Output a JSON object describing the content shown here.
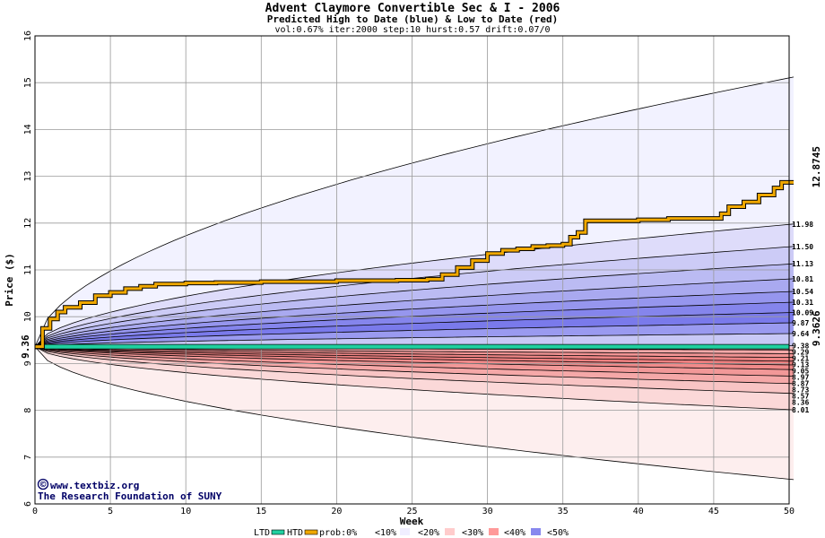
{
  "header": {
    "title": "Advent Claymore Convertible Sec & I - 2006",
    "subtitle": "Predicted High to Date (blue) &  Low to Date (red)",
    "params": "vol:0.67% iter:2000 step:10 hurst:0.57 drift:0.07/0"
  },
  "credits": {
    "site": "www.textbiz.org",
    "copyright_symbol": "©",
    "org": "The Research Foundation of SUNY"
  },
  "legend": {
    "ltd": "LTD",
    "htd": "HTD",
    "prob": "prob:0%",
    "b10": "<10%",
    "b20": "<20%",
    "b30": "<30%",
    "b40": "<40%",
    "b50": "<50%"
  },
  "colors": {
    "htd": "#f0a800",
    "ltd": "#20d0a0",
    "current_label": "#006633",
    "htd_label": "#b07800"
  },
  "chart_data": {
    "type": "area",
    "title": "Advent Claymore Convertible Sec & I - 2006",
    "xlabel": "Week",
    "ylabel": "Price ($)",
    "xlim": [
      0,
      50
    ],
    "ylim": [
      6,
      16
    ],
    "x_ticks": [
      0,
      5,
      10,
      15,
      20,
      25,
      30,
      35,
      40,
      45,
      50
    ],
    "y_ticks": [
      6,
      7,
      8,
      9,
      10,
      11,
      12,
      13,
      14,
      15,
      16
    ],
    "grid": true,
    "start_price_label": "9.36",
    "start_price": 9.36,
    "ltd_value": 9.36,
    "ltd_label": "9.3626",
    "htd_final_label": "12.8745",
    "outer_high_end": 15.12,
    "outer_low_end": 6.52,
    "upper_quantile_ends": [
      11.98,
      11.5,
      11.13,
      10.81,
      10.54,
      10.31,
      10.09,
      9.87,
      9.64
    ],
    "upper_quantile_labels": [
      "11.98",
      "11.50",
      "11.13",
      "10.81",
      "10.54",
      "10.31",
      "10.09",
      "9.87",
      "9.64"
    ],
    "lower_quantile_ends": [
      9.38,
      9.29,
      9.21,
      9.13,
      9.05,
      8.97,
      8.87,
      8.73,
      8.57,
      8.36,
      8.01
    ],
    "lower_quantile_labels": [
      "9.38",
      "9.29",
      "9.21",
      "9.13",
      "9.05",
      "8.97",
      "8.87",
      "8.73",
      "8.57",
      "8.36",
      "8.01"
    ],
    "htd_path": [
      [
        0,
        9.36
      ],
      [
        0.5,
        9.75
      ],
      [
        1,
        9.95
      ],
      [
        1.5,
        10.1
      ],
      [
        2,
        10.2
      ],
      [
        3,
        10.3
      ],
      [
        4,
        10.45
      ],
      [
        5,
        10.52
      ],
      [
        6,
        10.6
      ],
      [
        7,
        10.65
      ],
      [
        8,
        10.7
      ],
      [
        10,
        10.72
      ],
      [
        12,
        10.73
      ],
      [
        15,
        10.75
      ],
      [
        20,
        10.77
      ],
      [
        24,
        10.78
      ],
      [
        26,
        10.8
      ],
      [
        27,
        10.9
      ],
      [
        28,
        11.05
      ],
      [
        29,
        11.2
      ],
      [
        30,
        11.35
      ],
      [
        31,
        11.42
      ],
      [
        32,
        11.45
      ],
      [
        33,
        11.5
      ],
      [
        34,
        11.52
      ],
      [
        35,
        11.55
      ],
      [
        35.5,
        11.7
      ],
      [
        36,
        11.8
      ],
      [
        36.5,
        12.05
      ],
      [
        38,
        12.05
      ],
      [
        40,
        12.07
      ],
      [
        42,
        12.1
      ],
      [
        45,
        12.1
      ],
      [
        45.5,
        12.2
      ],
      [
        46,
        12.35
      ],
      [
        47,
        12.45
      ],
      [
        48,
        12.6
      ],
      [
        49,
        12.75
      ],
      [
        49.5,
        12.87
      ],
      [
        50.3,
        12.87
      ]
    ],
    "bands": [
      {
        "name": "<10%",
        "upper": 15.12,
        "lower": 6.52
      },
      {
        "name": "<20%",
        "upper": 11.98,
        "lower": 8.01
      },
      {
        "name": "<30%",
        "upper": 11.5,
        "lower": 8.36
      },
      {
        "name": "<40%",
        "upper": 11.13,
        "lower": 8.57
      },
      {
        "name": "<50%",
        "upper": 10.81,
        "lower": 8.73
      }
    ]
  }
}
